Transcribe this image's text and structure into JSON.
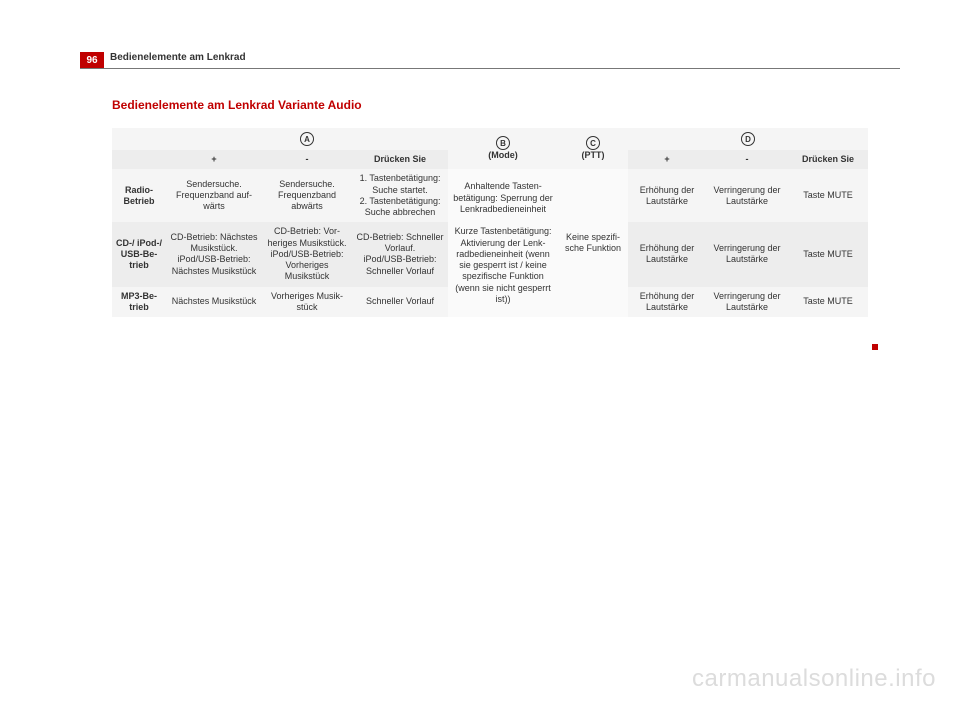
{
  "page_number": "96",
  "running_head": "Bedienelemente am Lenkrad",
  "section_title": "Bedienelemente am Lenkrad Variante Audio",
  "watermark": "carmanualsonline.info",
  "colors": {
    "accent": "#c00000",
    "band1": "#f5f5f5",
    "band2": "#ededed",
    "text": "#333333"
  },
  "header": {
    "groupA_letter": "A",
    "groupB_letter": "B",
    "groupB_sub": "(Mode)",
    "groupC_letter": "C",
    "groupC_sub": "(PTT)",
    "groupD_letter": "D",
    "plus": "+",
    "minus": "-",
    "press": "Drücken Sie"
  },
  "colB_text": "Anhaltende Tasten­betätigung: Sperrung der Lenk­radbedieneinheit\n\nKurze Tastenbetäti­gung:\nAktivierung der Lenk­radbedieneinheit (wenn sie gesperrt ist / keine spezifi­sche Funktion (wenn sie nicht gesperrt ist))",
  "colC_text": "Keine spezifi­sche Funktion",
  "rows": [
    {
      "label": "Radio-Betrieb",
      "a_plus": "Sendersuche. Frequenzband auf­wärts",
      "a_minus": "Sendersuche. Frequenzband abwärts",
      "a_press": "1. Tastenbetäti­gung: Suche star­tet.\n2. Tastenbetäti­gung: Suche ab­brechen",
      "d_plus": "Erhöhung der Lautstärke",
      "d_minus": "Verringerung der Lautstärke",
      "d_press": "Taste MUTE"
    },
    {
      "label": "CD-/ iPod-/ USB-Be­trieb",
      "a_plus": "CD-Betrieb: Nächstes Musik­stück.\niPod/USB-Betrieb: Nächstes Musik­stück",
      "a_minus": "CD-Betrieb: Vor­heriges Musik­stück.\niPod/USB-Be­trieb: Vorheriges Musikstück",
      "a_press": "CD-Betrieb: Schnel­ler Vorlauf.\niPod/USB-Betrieb: Schneller Vorlauf",
      "d_plus": "Erhöhung der Lautstärke",
      "d_minus": "Verringerung der Lautstärke",
      "d_press": "Taste MUTE"
    },
    {
      "label": "MP3-Be­trieb",
      "a_plus": "Nächstes Musik­stück",
      "a_minus": "Vorheriges Musik­stück",
      "a_press": "Schneller Vorlauf",
      "d_plus": "Erhöhung der Lautstärke",
      "d_minus": "Verringerung der Lautstärke",
      "d_press": "Taste MUTE"
    }
  ]
}
